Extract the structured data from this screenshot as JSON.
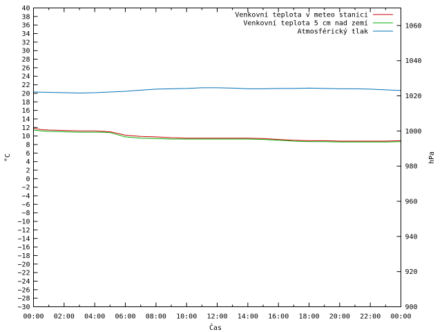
{
  "chart_data": {
    "type": "line",
    "xlabel": "Čas",
    "ylabel": "°C",
    "y2label": "hPa",
    "xlim": [
      0,
      24
    ],
    "ylim": [
      -30,
      40
    ],
    "y2lim": [
      900,
      1070
    ],
    "x_ticks": [
      "00:00",
      "02:00",
      "04:00",
      "06:00",
      "08:00",
      "10:00",
      "12:00",
      "14:00",
      "16:00",
      "18:00",
      "20:00",
      "22:00",
      "00:00"
    ],
    "y_ticks": [
      40,
      38,
      36,
      34,
      32,
      30,
      28,
      26,
      24,
      22,
      20,
      18,
      16,
      14,
      12,
      10,
      8,
      6,
      4,
      2,
      0,
      -2,
      -4,
      -6,
      -8,
      -10,
      -12,
      -14,
      -16,
      -18,
      -20,
      -22,
      -24,
      -26,
      -28,
      -30
    ],
    "y_tick_labels": [
      "40",
      "38",
      "36",
      "34",
      "32",
      "30",
      "28",
      "26",
      "24",
      "22",
      "20",
      "18",
      "16",
      "14",
      "12",
      "10",
      "8",
      "6",
      "4",
      "2",
      "0",
      "−2",
      "−4",
      "−6",
      "−8",
      "−10",
      "−12",
      "−14",
      "−16",
      "−18",
      "−20",
      "−22",
      "−24",
      "−26",
      "−28",
      "−30"
    ],
    "y2_ticks": [
      1060,
      1040,
      1020,
      1000,
      980,
      960,
      940,
      920,
      900
    ],
    "y2_tick_labels": [
      "1060",
      "1040",
      "1020",
      "1000",
      "980",
      "960",
      "940",
      "920",
      "900"
    ],
    "grid": false,
    "legend_position": "top-right",
    "series": [
      {
        "name": "Venkovní teplota v meteo stanici",
        "color": "#cc0000",
        "axis": "left",
        "x": [
          0,
          0.5,
          1,
          2,
          3,
          4,
          4.5,
          5,
          5.5,
          6,
          7,
          8,
          9,
          10,
          11,
          12,
          13,
          14,
          15,
          16,
          17,
          18,
          19,
          20,
          21,
          22,
          23,
          24
        ],
        "y": [
          11.8,
          11.5,
          11.4,
          11.3,
          11.2,
          11.2,
          11.1,
          11.0,
          10.6,
          10.2,
          9.9,
          9.8,
          9.6,
          9.5,
          9.5,
          9.5,
          9.5,
          9.5,
          9.4,
          9.2,
          9.0,
          8.9,
          8.9,
          8.8,
          8.8,
          8.8,
          8.8,
          8.9
        ]
      },
      {
        "name": "Venkovní teplota 5 cm nad zemí",
        "color": "#00aa00",
        "axis": "left",
        "x": [
          0,
          0.5,
          1,
          2,
          3,
          4,
          4.5,
          5,
          5.5,
          6,
          7,
          8,
          9,
          10,
          11,
          12,
          13,
          14,
          15,
          16,
          17,
          18,
          19,
          20,
          21,
          22,
          23,
          24
        ],
        "y": [
          11.4,
          11.2,
          11.1,
          11.0,
          10.9,
          10.9,
          10.9,
          10.8,
          10.3,
          9.8,
          9.5,
          9.4,
          9.3,
          9.3,
          9.3,
          9.3,
          9.3,
          9.3,
          9.2,
          9.0,
          8.8,
          8.7,
          8.7,
          8.6,
          8.6,
          8.6,
          8.6,
          8.7
        ]
      },
      {
        "name": "Atmosférický tlak",
        "color": "#0070b8",
        "axis": "right",
        "x": [
          0,
          1,
          2,
          3,
          4,
          5,
          6,
          7,
          8,
          9,
          10,
          11,
          12,
          13,
          14,
          15,
          16,
          17,
          18,
          19,
          20,
          21,
          22,
          23,
          24
        ],
        "y": [
          1022.2,
          1022.0,
          1021.8,
          1021.6,
          1021.8,
          1022.2,
          1022.6,
          1023.2,
          1023.8,
          1024.0,
          1024.2,
          1024.6,
          1024.6,
          1024.4,
          1024.0,
          1024.0,
          1024.2,
          1024.2,
          1024.4,
          1024.2,
          1024.0,
          1024.0,
          1023.8,
          1023.4,
          1023.0
        ]
      }
    ]
  }
}
